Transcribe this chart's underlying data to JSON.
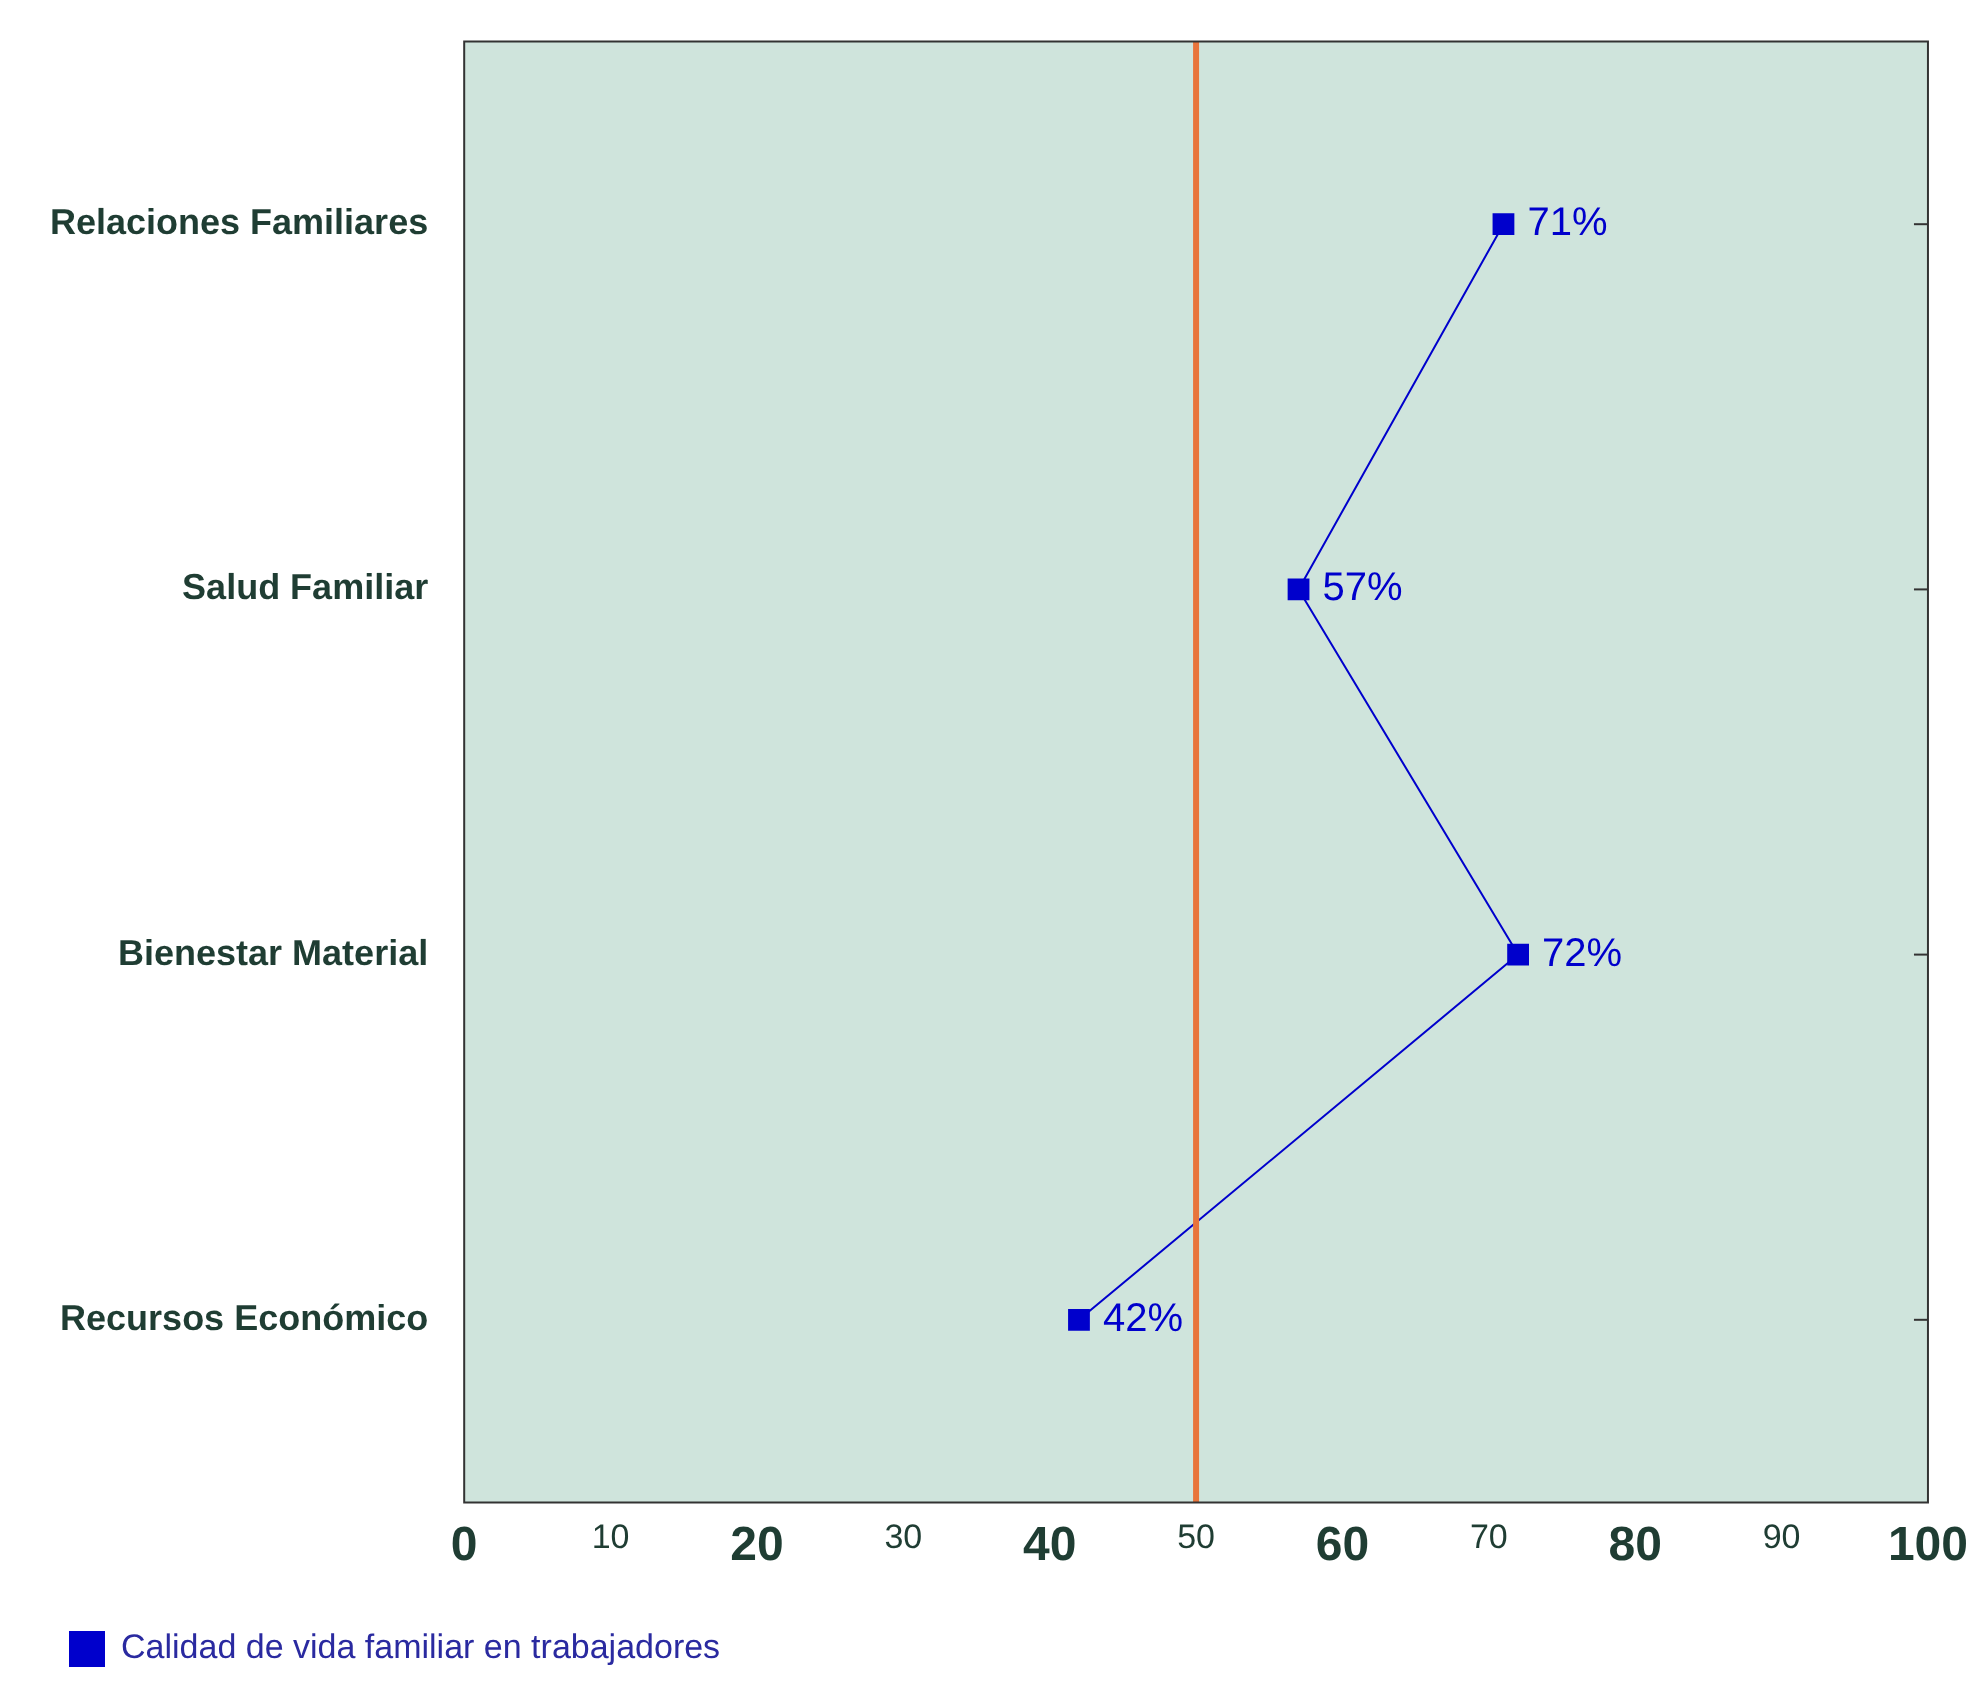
{
  "chart_data": {
    "type": "line",
    "orientation": "horizontal",
    "categories": [
      "Relaciones Familiares",
      "Salud Familiar",
      "Bienestar Material",
      "Recursos Económico"
    ],
    "series": [
      {
        "name": "Calidad de vida familiar en trabajadores",
        "color": "#0000cc",
        "values": [
          71,
          57,
          72,
          42
        ],
        "value_labels": [
          "71%",
          "57%",
          "72%",
          "42%"
        ]
      }
    ],
    "xlim": [
      0,
      100
    ],
    "xticks": [
      0,
      10,
      20,
      30,
      40,
      50,
      60,
      70,
      80,
      90,
      100
    ],
    "ref_lines": [
      {
        "axis": "x",
        "value": 50,
        "color": "#e8743b"
      }
    ],
    "marker": "square",
    "line_style": "solid",
    "grid": false,
    "legend": "bottom left"
  }
}
